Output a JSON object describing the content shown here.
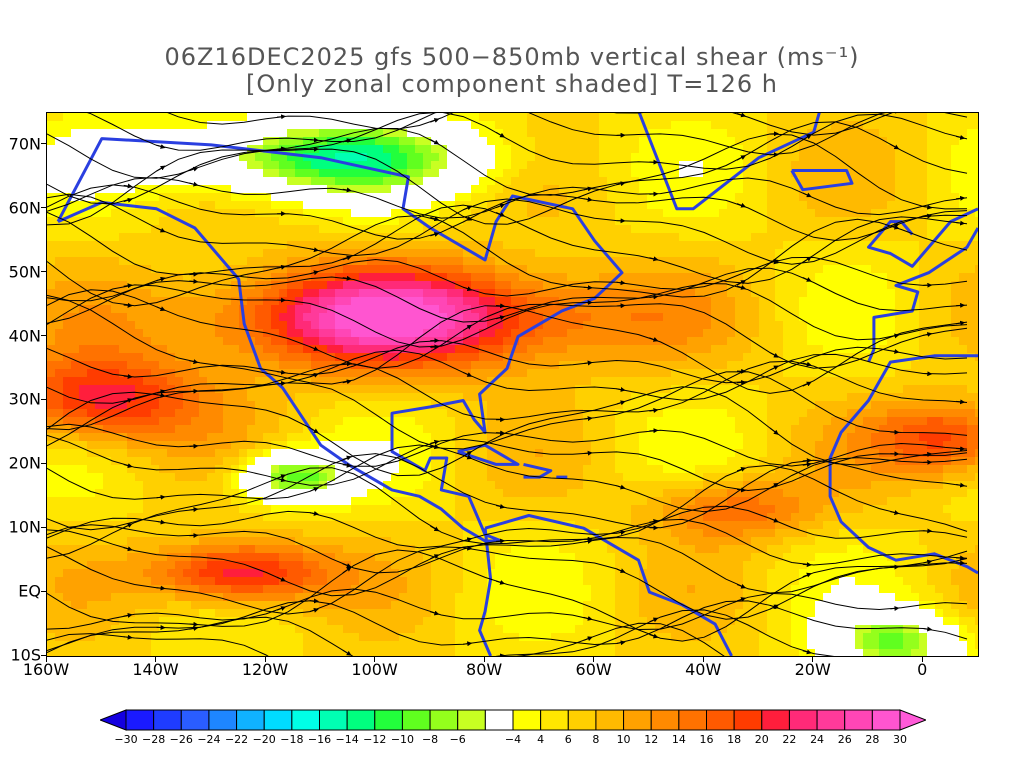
{
  "title": {
    "line1": "06Z16DEC2025 gfs 500−850mb vertical shear (ms⁻¹)",
    "line2": "[Only zonal component shaded] T=126 h"
  },
  "map": {
    "lat_labels": [
      "70N",
      "60N",
      "50N",
      "40N",
      "30N",
      "20N",
      "10N",
      "EQ",
      "10S"
    ],
    "lat_values": [
      70,
      60,
      50,
      40,
      30,
      20,
      10,
      0,
      -10
    ],
    "lon_labels": [
      "160W",
      "140W",
      "120W",
      "100W",
      "80W",
      "60W",
      "40W",
      "20W",
      "0"
    ],
    "lon_values": [
      -160,
      -140,
      -120,
      -100,
      -80,
      -60,
      -40,
      -20,
      0
    ],
    "extent": {
      "lon_min": -160,
      "lon_max": 10,
      "lat_min": -10,
      "lat_max": 75
    },
    "colors": {
      "coastline": "#2a3fe0",
      "streamline": "#000000",
      "frame": "#000000"
    }
  },
  "colorbar": {
    "labels": [
      "−30",
      "−28",
      "−26",
      "−24",
      "−22",
      "−20",
      "−18",
      "−16",
      "−14",
      "−12",
      "−10",
      "−8",
      "−6",
      "−4",
      "4",
      "6",
      "8",
      "10",
      "12",
      "14",
      "16",
      "18",
      "20",
      "22",
      "24",
      "26",
      "28",
      "30"
    ],
    "colors": [
      "#1a1aff",
      "#1f3cff",
      "#2a5dff",
      "#1e86ff",
      "#10b2ff",
      "#00dcff",
      "#00ffe6",
      "#00ffb3",
      "#00ff7f",
      "#22ff3c",
      "#60ff1f",
      "#94ff1c",
      "#c8ff22",
      "#ffffff",
      "#ffff00",
      "#ffe600",
      "#ffd000",
      "#ffba00",
      "#ffa200",
      "#ff8a00",
      "#ff7200",
      "#ff5a00",
      "#ff3c00",
      "#ff1e3c",
      "#ff2a78",
      "#ff3a9a",
      "#ff46b6",
      "#ff55d0"
    ],
    "end_low_color": "#1400e0",
    "end_high_color": "#ff5ad8"
  }
}
